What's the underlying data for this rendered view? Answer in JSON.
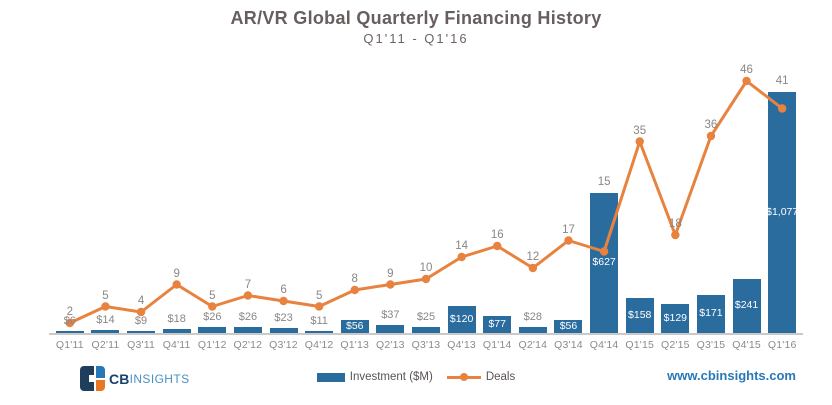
{
  "title": "AR/VR Global Quarterly Financing History",
  "subtitle": "Q1'11 - Q1'16",
  "legend": {
    "investment_label": "Investment ($M)",
    "deals_label": "Deals"
  },
  "footer": {
    "logo_cb": "CB",
    "logo_insights": "INSIGHTS",
    "website": "www.cbinsights.com"
  },
  "colors": {
    "bar": "#2b6c9f",
    "line": "#e8823f",
    "axis": "#c9c9c9",
    "title_text": "#675e5e",
    "gray_label": "#8a8684",
    "website_blue": "#2878b8",
    "logo_navy": "#1e3e5c",
    "logo_orange": "#e87722"
  },
  "chart_data": {
    "type": "bar",
    "subtype": "combo-bar-line",
    "title": "AR/VR Global Quarterly Financing History",
    "subtitle": "Q1'11 - Q1'16",
    "xlabel": "",
    "ylabel": "",
    "grid": false,
    "legend_position": "bottom",
    "categories": [
      "Q1'11",
      "Q2'11",
      "Q3'11",
      "Q4'11",
      "Q1'12",
      "Q2'12",
      "Q3'12",
      "Q4'12",
      "Q1'13",
      "Q2'13",
      "Q3'13",
      "Q4'13",
      "Q1'14",
      "Q2'14",
      "Q3'14",
      "Q4'14",
      "Q1'15",
      "Q2'15",
      "Q3'15",
      "Q4'15",
      "Q1'16"
    ],
    "series": [
      {
        "name": "Investment ($M)",
        "type": "bar",
        "values": [
          6,
          14,
          9,
          18,
          26,
          26,
          23,
          11,
          56,
          37,
          25,
          120,
          77,
          28,
          56,
          627,
          158,
          129,
          171,
          241,
          1077
        ],
        "labels": [
          "$6",
          "$14",
          "$9",
          "$18",
          "$26",
          "$26",
          "$23",
          "$11",
          "$56",
          "$37",
          "$25",
          "$120",
          "$77",
          "$28",
          "$56",
          "$627",
          "$158",
          "$129",
          "$171",
          "$241",
          "$1,077"
        ],
        "ylim": [
          0,
          1200
        ]
      },
      {
        "name": "Deals",
        "type": "line",
        "values": [
          2,
          5,
          4,
          9,
          5,
          7,
          6,
          5,
          8,
          9,
          10,
          14,
          16,
          12,
          17,
          15,
          35,
          18,
          36,
          46,
          41
        ],
        "ylim": [
          0,
          50
        ]
      }
    ]
  }
}
